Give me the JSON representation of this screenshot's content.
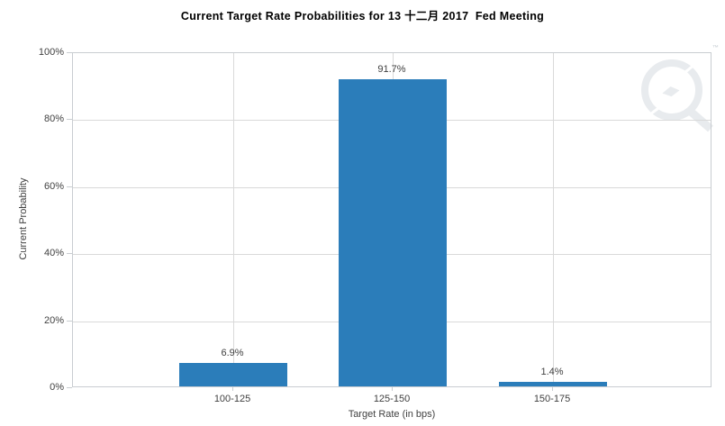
{
  "watermark": {
    "trademark": "™",
    "icon": "q-lightning-bolt-logo",
    "color": "#e8ebee"
  },
  "chart_data": {
    "type": "bar",
    "title": "Current Target Rate Probabilities for 13 十二月 2017  Fed Meeting",
    "categories": [
      "100-125",
      "125-150",
      "150-175"
    ],
    "values": [
      6.9,
      91.7,
      1.4
    ],
    "value_labels": [
      "6.9%",
      "91.7%",
      "1.4%"
    ],
    "xlabel": "Target Rate (in bps)",
    "ylabel": "Current Probability",
    "ylim": [
      0,
      100
    ],
    "yticks": [
      {
        "value": 0,
        "label": "0%"
      },
      {
        "value": 20,
        "label": "20%"
      },
      {
        "value": 40,
        "label": "40%"
      },
      {
        "value": 60,
        "label": "60%"
      },
      {
        "value": 80,
        "label": "80%"
      },
      {
        "value": 100,
        "label": "100%"
      }
    ],
    "grid": true,
    "legend": "none",
    "colors": {
      "bar": "#2b7dba",
      "grid": "#d9d9d9",
      "axis": "#c9cdd1",
      "tick_text": "#404040",
      "title_text": "#000000"
    }
  }
}
